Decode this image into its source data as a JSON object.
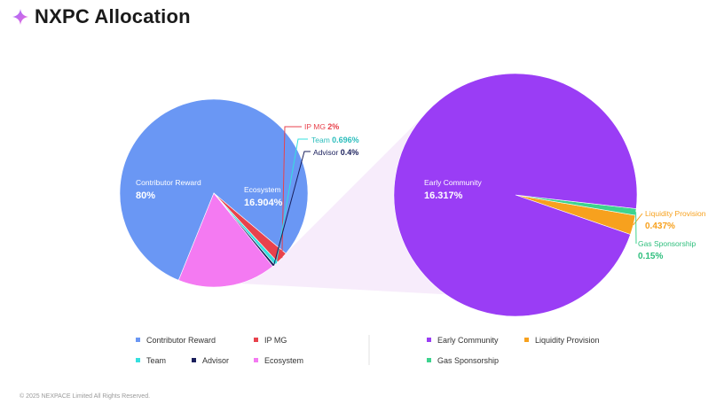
{
  "header": {
    "title": "NXPC Allocation",
    "icon": "sparkle-icon"
  },
  "footer": {
    "copyright": "© 2025 NEXPACE Limited All Rights Reserved."
  },
  "chart_data": [
    {
      "type": "pie",
      "slices": [
        {
          "label": "Contributor Reward",
          "name": "Contributor Reward",
          "pct": "80%",
          "value": 80,
          "color": "#6A97F4"
        },
        {
          "label": "Ecosystem",
          "name": "Ecosystem",
          "pct": "16.904%",
          "value": 16.904,
          "color": "#F47AF2"
        },
        {
          "label": "Advisor",
          "name": "Advisor",
          "pct": "0.4%",
          "value": 0.4,
          "color": "#1A1F5C"
        },
        {
          "label": "Team",
          "name": "Team",
          "pct": "0.696%",
          "value": 0.696,
          "color": "#35E0DF"
        },
        {
          "label": "IP MG",
          "name": "IP MG",
          "pct": "2%",
          "value": 2,
          "color": "#E8424C"
        }
      ]
    },
    {
      "type": "pie",
      "slices": [
        {
          "label": "Liquidity Provision",
          "name": "Liquidity Provision",
          "pct": "0.437%",
          "value": 0.437,
          "color": "#F7A11E"
        },
        {
          "label": "Gas Sponsorship",
          "name": "Gas Sponsorship",
          "pct": "0.15%",
          "value": 0.15,
          "color": "#3DD38E"
        },
        {
          "label": "Early Community",
          "name": "Early Community",
          "pct": "16.317%",
          "value": 16.317,
          "color": "#9A3DF5"
        }
      ]
    }
  ],
  "legend": {
    "left": [
      {
        "label": "Contributor Reward",
        "color": "#6A97F4"
      },
      {
        "label": "IP MG",
        "color": "#E8424C"
      },
      {
        "label": "Team",
        "color": "#35E0DF"
      },
      {
        "label": "Advisor",
        "color": "#1A1F5C"
      },
      {
        "label": "Ecosystem",
        "color": "#F47AF2"
      }
    ],
    "right": [
      {
        "label": "Early Community",
        "color": "#9A3DF5"
      },
      {
        "label": "Liquidity Provision",
        "color": "#F7A11E"
      },
      {
        "label": "Gas Sponsorship",
        "color": "#3DD38E"
      }
    ]
  }
}
